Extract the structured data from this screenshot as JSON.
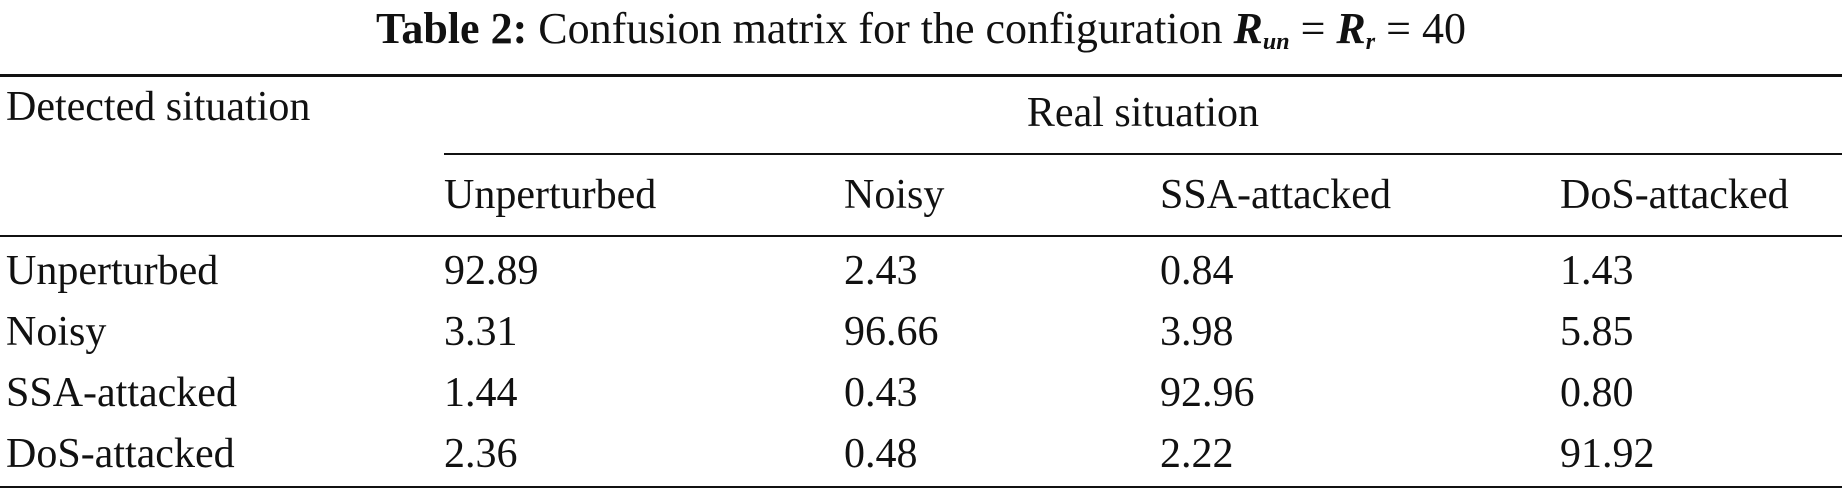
{
  "caption": {
    "label": "Table 2:",
    "text": "Confusion matrix for the configuration",
    "var1": "R",
    "sub1": "un",
    "equals1": "=",
    "var2": "R",
    "sub2": "r",
    "equals2": "= 40"
  },
  "table": {
    "stub_header": "Detected situation",
    "group_header": "Real situation",
    "columns": [
      "Unperturbed",
      "Noisy",
      "SSA-attacked",
      "DoS-attacked"
    ],
    "rows": [
      {
        "label": "Unperturbed",
        "values": [
          "92.89",
          "2.43",
          "0.84",
          "1.43"
        ]
      },
      {
        "label": "Noisy",
        "values": [
          "3.31",
          "96.66",
          "3.98",
          "5.85"
        ]
      },
      {
        "label": "SSA-attacked",
        "values": [
          "1.44",
          "0.43",
          "92.96",
          "0.80"
        ]
      },
      {
        "label": "DoS-attacked",
        "values": [
          "2.36",
          "0.48",
          "2.22",
          "91.92"
        ]
      }
    ]
  }
}
